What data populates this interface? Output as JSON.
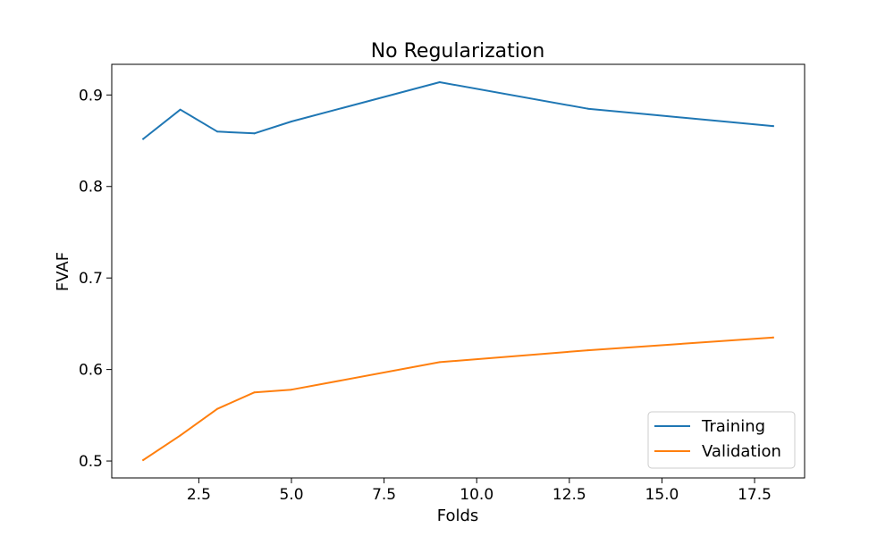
{
  "chart_data": {
    "type": "line",
    "title": "No Regularization",
    "xlabel": "Folds",
    "ylabel": "FVAF",
    "xlim": [
      0.15,
      18.85
    ],
    "ylim": [
      0.4815,
      0.9335
    ],
    "x_ticks": [
      2.5,
      5.0,
      7.5,
      10.0,
      12.5,
      15.0,
      17.5
    ],
    "x_tick_labels": [
      "2.5",
      "5.0",
      "7.5",
      "10.0",
      "12.5",
      "15.0",
      "17.5"
    ],
    "y_ticks": [
      0.5,
      0.6,
      0.7,
      0.8,
      0.9
    ],
    "y_tick_labels": [
      "0.5",
      "0.6",
      "0.7",
      "0.8",
      "0.9"
    ],
    "grid": false,
    "legend": {
      "position": "bottom-right"
    },
    "series": [
      {
        "name": "Training",
        "color": "#1f77b4",
        "x": [
          1,
          2,
          3,
          4,
          5,
          9,
          13,
          18
        ],
        "y": [
          0.852,
          0.884,
          0.86,
          0.858,
          0.871,
          0.914,
          0.885,
          0.866
        ]
      },
      {
        "name": "Validation",
        "color": "#ff7f0e",
        "x": [
          1,
          2,
          3,
          4,
          5,
          9,
          13,
          18
        ],
        "y": [
          0.501,
          0.528,
          0.557,
          0.575,
          0.578,
          0.608,
          0.621,
          0.635
        ]
      }
    ]
  }
}
